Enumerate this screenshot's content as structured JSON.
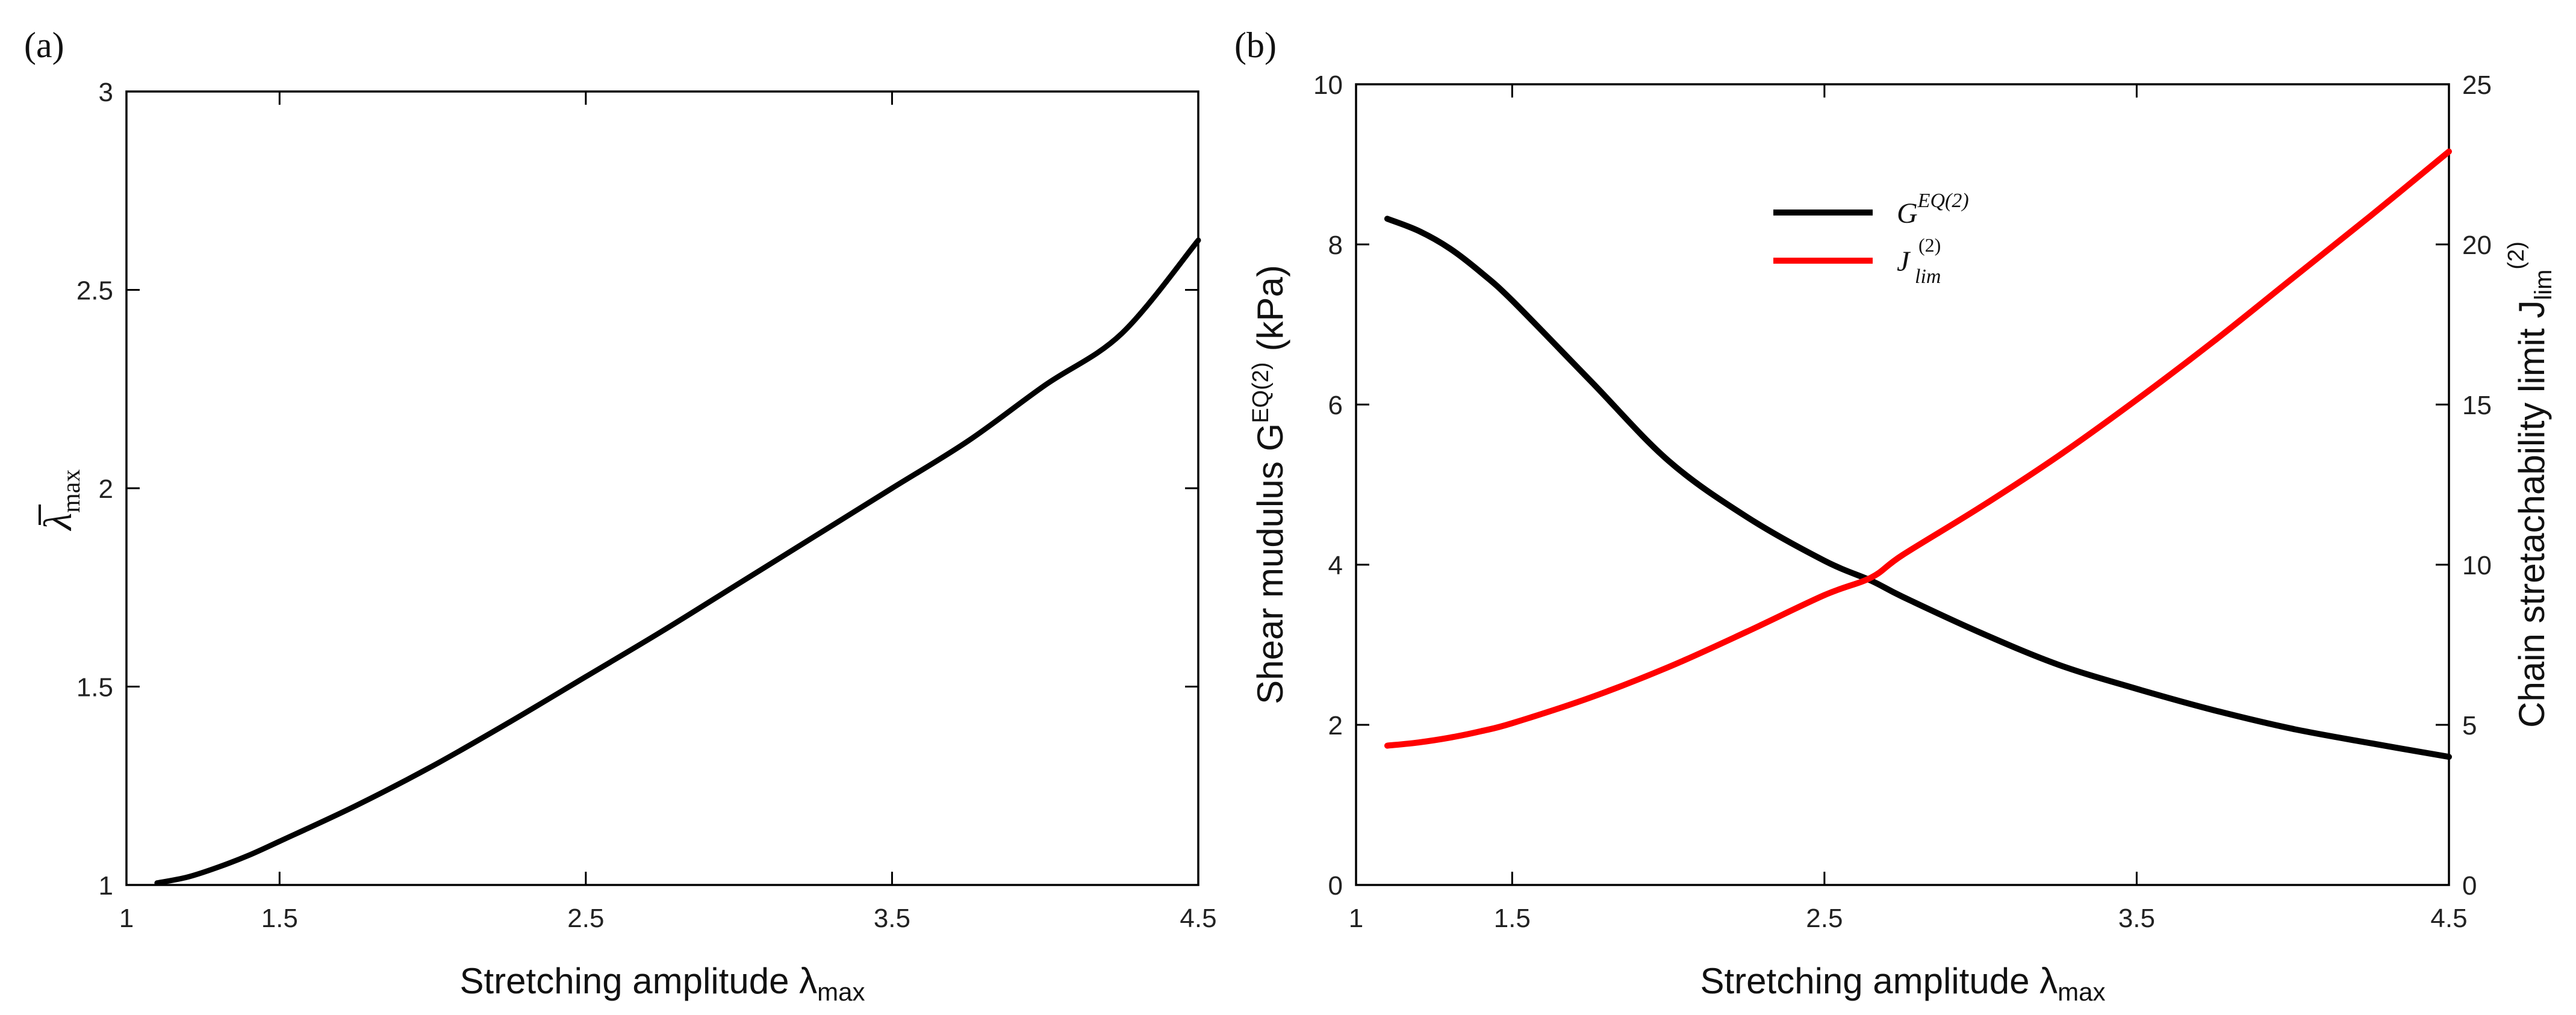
{
  "chart_data": [
    {
      "type": "line",
      "panel_label": "(a)",
      "xlabel": "Stretching amplitude λ",
      "xlabel_sub": "max",
      "ylabel": "λ",
      "ylabel_sub": "max",
      "xlim": [
        1,
        4.5
      ],
      "ylim": [
        1,
        3
      ],
      "xticks": [
        1,
        1.5,
        2.5,
        3.5,
        4.5
      ],
      "xtick_labels": [
        "1",
        "1.5",
        "2.5",
        "3.5",
        "4.5"
      ],
      "yticks": [
        1,
        1.5,
        2,
        2.5,
        3
      ],
      "ytick_labels": [
        "1",
        "1.5",
        "2",
        "2.5",
        "3"
      ],
      "grid": false,
      "series": [
        {
          "name": "lambda_bar_max",
          "color": "#000000",
          "x": [
            1.1,
            1.2,
            1.3,
            1.4,
            1.5,
            1.75,
            2.0,
            2.25,
            2.5,
            2.75,
            3.0,
            3.25,
            3.5,
            3.75,
            4.0,
            4.25,
            4.5
          ],
          "y": [
            1.005,
            1.02,
            1.045,
            1.075,
            1.11,
            1.2,
            1.3,
            1.41,
            1.525,
            1.64,
            1.76,
            1.88,
            2.0,
            2.12,
            2.26,
            2.39,
            2.625
          ]
        }
      ]
    },
    {
      "type": "line",
      "panel_label": "(b)",
      "xlabel": "Stretching amplitude λ",
      "xlabel_sub": "max",
      "ylabel_left": "Shear mudulus G",
      "ylabel_left_sup": "EQ(2)",
      "ylabel_left_unit": "(kPa)",
      "ylabel_right": "Chain stretachability limit J",
      "ylabel_right_sub": "lim",
      "ylabel_right_sup": "(2)",
      "xlim": [
        1,
        4.5
      ],
      "ylim_left": [
        0,
        10
      ],
      "ylim_right": [
        0,
        25
      ],
      "xticks": [
        1,
        1.5,
        2.5,
        3.5,
        4.5
      ],
      "xtick_labels": [
        "1",
        "1.5",
        "2.5",
        "3.5",
        "4.5"
      ],
      "yticks_left": [
        0,
        2,
        4,
        6,
        8,
        10
      ],
      "ytick_labels_left": [
        "0",
        "2",
        "4",
        "6",
        "8",
        "10"
      ],
      "yticks_right": [
        0,
        5,
        10,
        15,
        20,
        25
      ],
      "ytick_labels_right": [
        "0",
        "5",
        "10",
        "15",
        "20",
        "25"
      ],
      "legend_position": "upper-center",
      "grid": false,
      "series": [
        {
          "name": "G",
          "legend_main": "G",
          "legend_sup": "EQ(2)",
          "axis": "left",
          "color": "#000000",
          "x": [
            1.1,
            1.2,
            1.3,
            1.4,
            1.5,
            1.75,
            2.0,
            2.25,
            2.5,
            2.65,
            2.75,
            3.0,
            3.25,
            3.5,
            3.75,
            4.0,
            4.25,
            4.5
          ],
          "y": [
            8.32,
            8.17,
            7.95,
            7.65,
            7.3,
            6.3,
            5.3,
            4.6,
            4.05,
            3.8,
            3.6,
            3.15,
            2.75,
            2.45,
            2.18,
            1.95,
            1.77,
            1.6
          ]
        },
        {
          "name": "J",
          "legend_main": "J",
          "legend_sub": "lim",
          "legend_sup": "(2)",
          "axis": "right",
          "color": "#ff0000",
          "x": [
            1.1,
            1.2,
            1.3,
            1.4,
            1.5,
            1.75,
            2.0,
            2.25,
            2.5,
            2.65,
            2.75,
            3.0,
            3.25,
            3.5,
            3.75,
            4.0,
            4.25,
            4.5
          ],
          "y": [
            4.35,
            4.45,
            4.6,
            4.8,
            5.05,
            5.85,
            6.8,
            7.9,
            9.05,
            9.6,
            10.3,
            11.8,
            13.4,
            15.15,
            17.0,
            18.95,
            20.9,
            22.9
          ]
        }
      ]
    }
  ]
}
